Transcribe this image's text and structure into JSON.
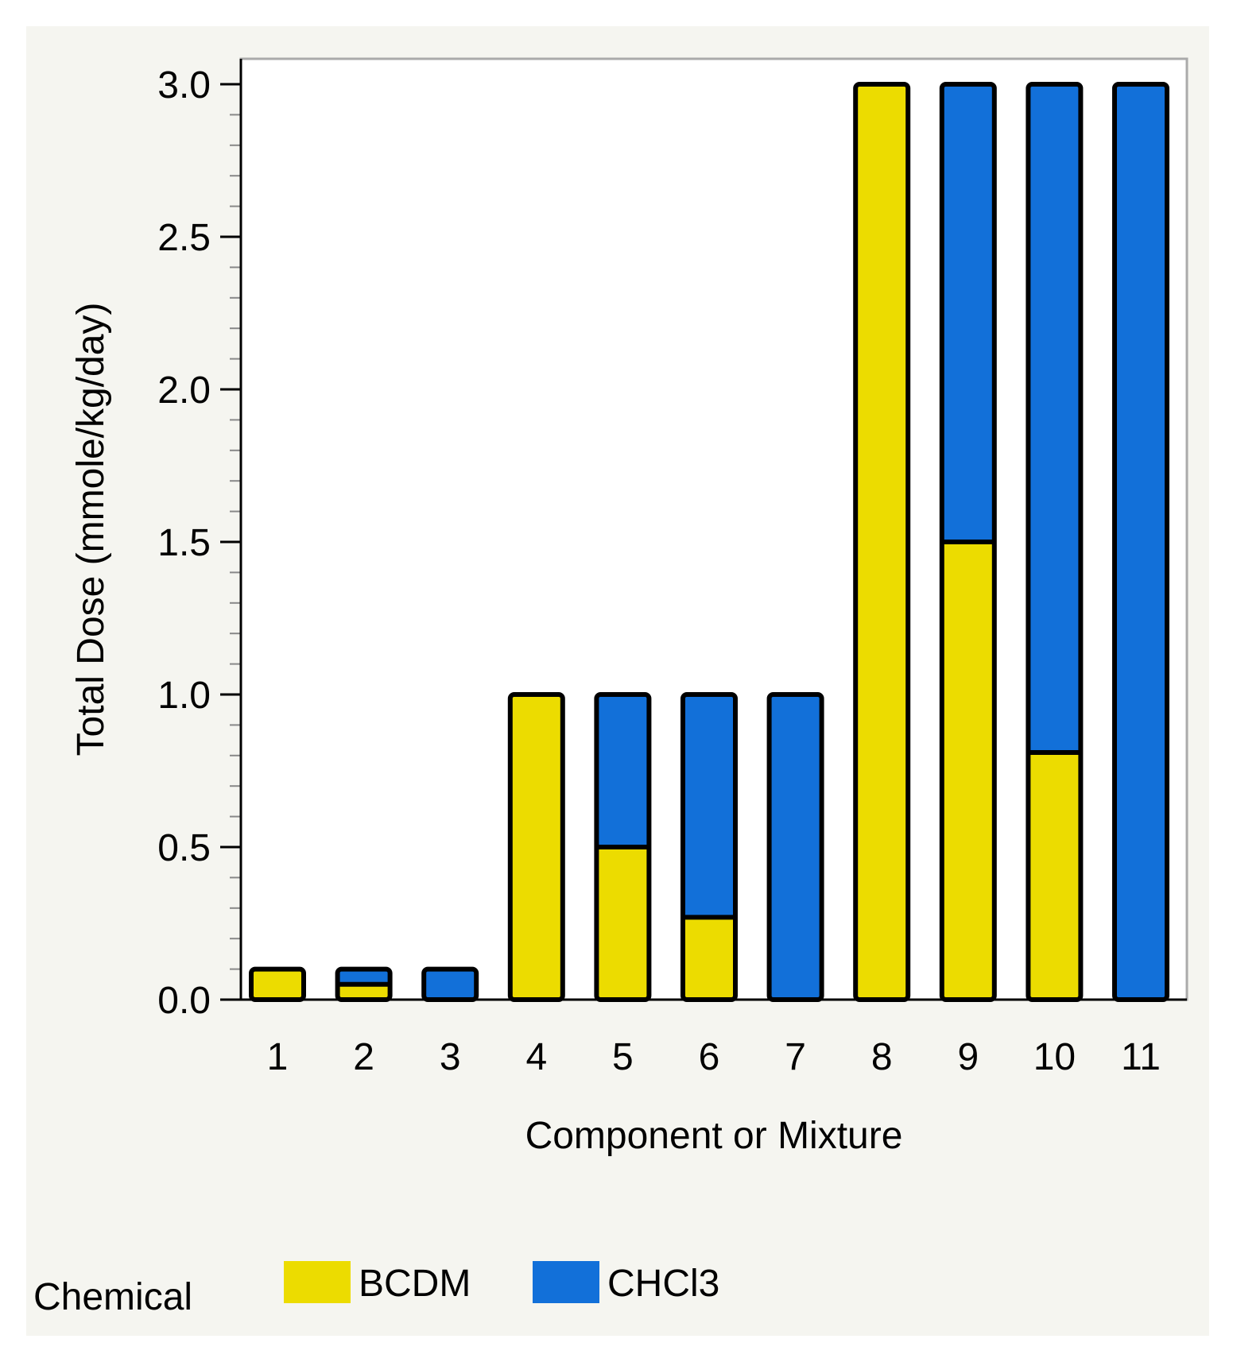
{
  "chart_data": {
    "type": "bar",
    "stacked": true,
    "title": "",
    "xlabel": "Component or Mixture",
    "ylabel": "Total Dose (mmole/kg/day)",
    "ylim": [
      0,
      3.1
    ],
    "yticks": [
      0.0,
      0.5,
      1.0,
      1.5,
      2.0,
      2.5,
      3.0
    ],
    "ytick_labels": [
      "0.0",
      "0.5",
      "1.0",
      "1.5",
      "2.0",
      "2.5",
      "3.0"
    ],
    "categories": [
      "1",
      "2",
      "3",
      "4",
      "5",
      "6",
      "7",
      "8",
      "9",
      "10",
      "11"
    ],
    "series": [
      {
        "name": "BCDM",
        "color": "#ECDC00",
        "values": [
          0.1,
          0.05,
          0,
          1.0,
          0.5,
          0.27,
          0,
          3.0,
          1.5,
          0.81,
          0
        ]
      },
      {
        "name": "CHCl3",
        "color": "#1270D9",
        "values": [
          0,
          0.05,
          0.1,
          0,
          0.5,
          0.73,
          1.0,
          0,
          1.5,
          2.19,
          3.0
        ]
      }
    ],
    "legend": {
      "title": "Chemical",
      "placement": "bottom",
      "entries": [
        "BCDM",
        "CHCl3"
      ]
    },
    "grid": false
  },
  "colors": {
    "background": "#F5F5F0",
    "plot_background": "#FFFFFF",
    "frame": "#AAAAAA",
    "bar_outline": "#000000"
  }
}
